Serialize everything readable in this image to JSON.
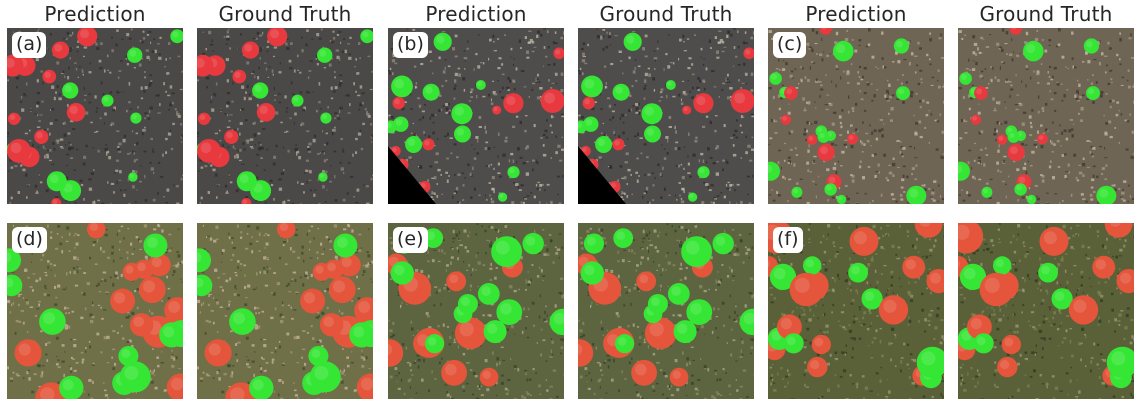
{
  "column_titles": [
    "Prediction",
    "Ground Truth",
    "Prediction",
    "Ground Truth",
    "Prediction",
    "Ground Truth"
  ],
  "panel_labels": [
    "(a)",
    "(b)",
    "(c)",
    "(d)",
    "(e)",
    "(f)"
  ],
  "colors": {
    "class_red": "#e8393f",
    "class_green": "#35e635",
    "soil_dark": "#4a4846",
    "soil_light": "#9d8f7c",
    "grass": "#5e6a3e",
    "red_tree_dense": "#e4553b"
  }
}
